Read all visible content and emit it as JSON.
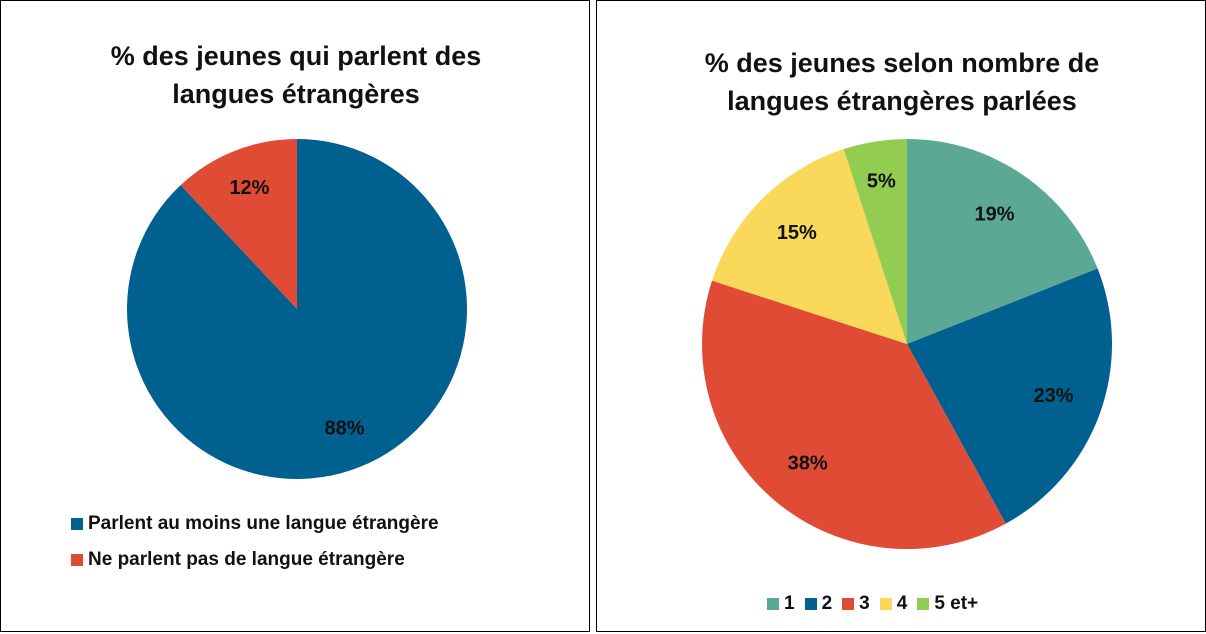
{
  "chart_data": [
    {
      "type": "pie",
      "title": "% des jeunes qui parlent des langues étrangères",
      "categories": [
        "Parlent au moins une langue étrangère",
        "Ne parlent pas de langue étrangère"
      ],
      "values": [
        88,
        12
      ],
      "value_labels": [
        "88%",
        "12%"
      ],
      "colors": [
        "#00608f",
        "#e04b36"
      ]
    },
    {
      "type": "pie",
      "title": "% des jeunes selon nombre de langues étrangères parlées",
      "categories": [
        "1",
        "2",
        "3",
        "4",
        "5 et+"
      ],
      "values": [
        19,
        23,
        38,
        15,
        5
      ],
      "value_labels": [
        "19%",
        "23%",
        "38%",
        "15%",
        "5%"
      ],
      "colors": [
        "#5ba994",
        "#00608f",
        "#e04b36",
        "#f9d85a",
        "#92cd52"
      ]
    }
  ]
}
